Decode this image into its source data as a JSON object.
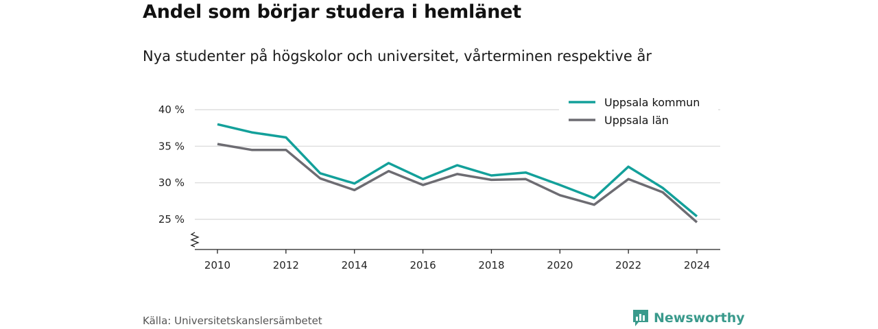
{
  "header": {
    "title": "Andel som börjar studera i hemlänet",
    "subtitle": "Nya studenter på högskolor och universitet, vårterminen respektive år"
  },
  "footer": {
    "source": "Källa: Universitetskanslersämbetet",
    "brand": "Newsworthy",
    "brand_color": "#3a9a8c"
  },
  "chart_data": {
    "type": "line",
    "x": [
      2010,
      2011,
      2012,
      2013,
      2014,
      2015,
      2016,
      2017,
      2018,
      2019,
      2020,
      2021,
      2022,
      2023,
      2024
    ],
    "x_ticks": [
      2010,
      2012,
      2014,
      2016,
      2018,
      2020,
      2022,
      2024
    ],
    "x_tick_labels": [
      "2010",
      "2012",
      "2014",
      "2016",
      "2018",
      "2020",
      "2022",
      "2024"
    ],
    "y_ticks": [
      25,
      30,
      35,
      40
    ],
    "y_tick_labels": [
      "25 %",
      "30 %",
      "35 %",
      "40 %"
    ],
    "ylim": [
      23,
      41
    ],
    "y_axis_break": true,
    "grid": true,
    "legend_position": "top-right",
    "series": [
      {
        "name": "Uppsala kommun",
        "color": "#13a09a",
        "values": [
          38.0,
          36.9,
          36.2,
          31.3,
          29.9,
          32.7,
          30.5,
          32.4,
          31.0,
          31.4,
          29.7,
          27.9,
          32.2,
          29.3,
          25.4
        ]
      },
      {
        "name": "Uppsala län",
        "color": "#6d6c72",
        "values": [
          35.3,
          34.5,
          34.5,
          30.6,
          29.0,
          31.6,
          29.7,
          31.2,
          30.4,
          30.5,
          28.3,
          27.0,
          30.5,
          28.7,
          24.6
        ]
      }
    ]
  }
}
